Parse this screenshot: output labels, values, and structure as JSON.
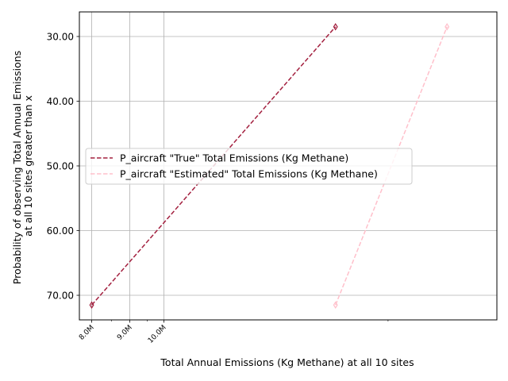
{
  "chart_data": {
    "type": "line",
    "title": "",
    "xlabel": "Total Annual Emissions (Kg Methane) at all 10 sites",
    "ylabel_lines": [
      "Probability of observing Total Annual Emissions",
      "at all 10 sites greater than x"
    ],
    "x_scale": "log",
    "xlim": [
      7700000,
      28000000
    ],
    "ylim": [
      73.8,
      26.2
    ],
    "y_inverted": true,
    "grid": true,
    "legend_position": "center-right",
    "x_ticks": [
      {
        "value": 8000000,
        "label": "8.0M"
      },
      {
        "value": 9000000,
        "label": "9.0M"
      },
      {
        "value": 10000000,
        "label": "10.0M"
      }
    ],
    "x_minor_ticks": [
      8500000,
      9500000,
      20000000
    ],
    "y_ticks": [
      {
        "value": 30,
        "label": "30.00"
      },
      {
        "value": 40,
        "label": "40.00"
      },
      {
        "value": 50,
        "label": "50.00"
      },
      {
        "value": 60,
        "label": "60.00"
      },
      {
        "value": 70,
        "label": "70.00"
      }
    ],
    "series": [
      {
        "name": "P_aircraft \"True\" Total Emissions (Kg Methane)",
        "color": "#a3203f",
        "dash": "dashed",
        "marker": "thin_diamond",
        "points": [
          {
            "x": 8000000,
            "y": 71.5
          },
          {
            "x": 17000000,
            "y": 28.5
          }
        ]
      },
      {
        "name": "P_aircraft \"Estimated\" Total Emissions (Kg Methane)",
        "color": "#ffc0cb",
        "dash": "dashed",
        "marker": "thin_diamond",
        "points": [
          {
            "x": 17000000,
            "y": 71.5
          },
          {
            "x": 24000000,
            "y": 28.5
          }
        ]
      }
    ]
  }
}
